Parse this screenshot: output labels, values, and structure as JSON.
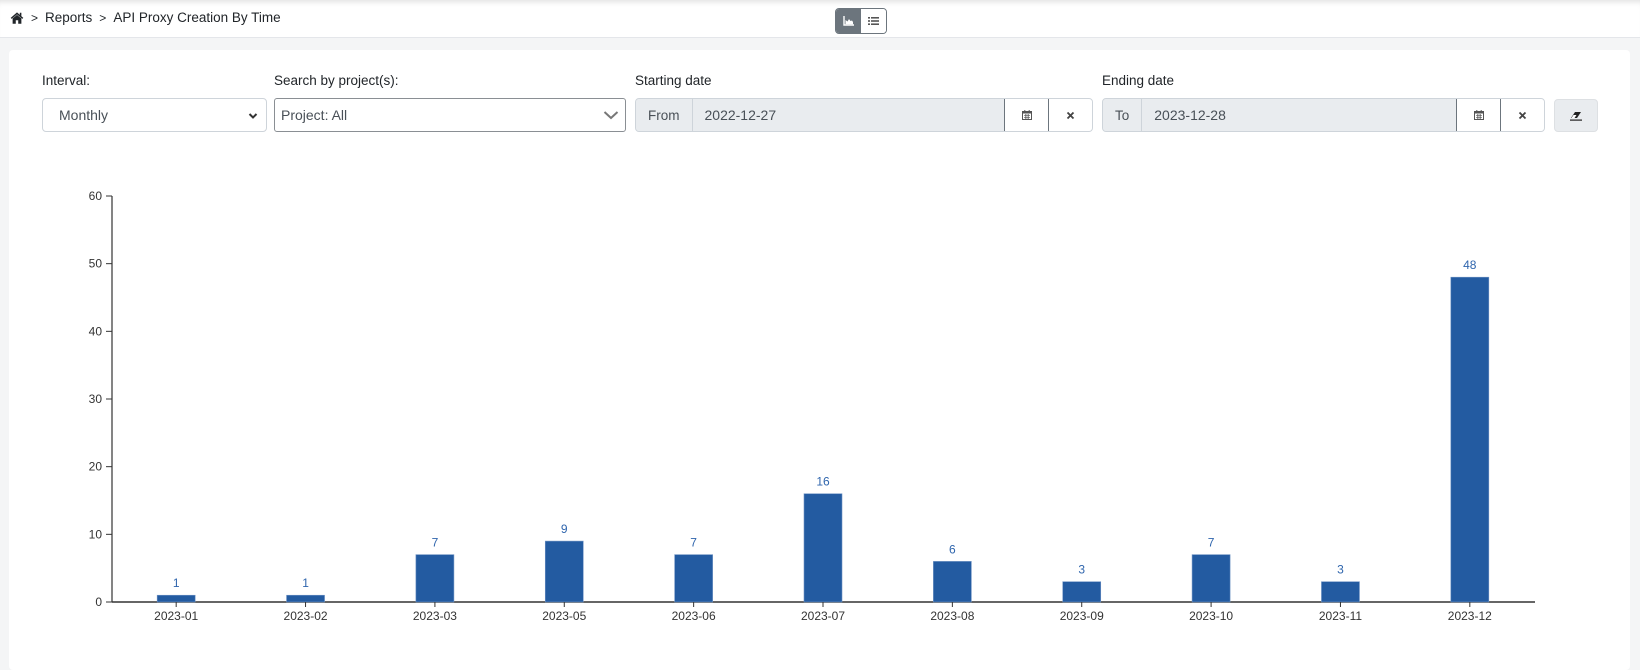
{
  "breadcrumb": {
    "home_icon": "home-icon",
    "separator": ">",
    "items": [
      "Reports",
      "API Proxy Creation By Time"
    ]
  },
  "view_toggle": {
    "options": [
      {
        "name": "chart-view",
        "icon": "area-chart-icon",
        "active": true
      },
      {
        "name": "list-view",
        "icon": "list-icon",
        "active": false
      }
    ]
  },
  "filters": {
    "interval": {
      "label": "Interval:",
      "value": "Monthly"
    },
    "project": {
      "label": "Search by project(s):",
      "value": "Project: All"
    },
    "start_date": {
      "label": "Starting date",
      "prefix": "From",
      "value": "2022-12-27"
    },
    "end_date": {
      "label": "Ending date",
      "prefix": "To",
      "value": "2023-12-28"
    },
    "clear_all_icon": "eraser-icon"
  },
  "colors": {
    "bar": "#235ba1",
    "label": "#2f65ad",
    "axis": "#333333",
    "tick_text": "#333333"
  },
  "chart_data": {
    "type": "bar",
    "title": "",
    "xlabel": "",
    "ylabel": "",
    "categories": [
      "2023-01",
      "2023-02",
      "2023-03",
      "2023-05",
      "2023-06",
      "2023-07",
      "2023-08",
      "2023-09",
      "2023-10",
      "2023-11",
      "2023-12"
    ],
    "values": [
      1,
      1,
      7,
      9,
      7,
      16,
      6,
      3,
      7,
      3,
      48
    ],
    "ylim": [
      0,
      60
    ],
    "yticks": [
      0,
      10,
      20,
      30,
      40,
      50,
      60
    ],
    "grid": false,
    "legend": null,
    "data_labels": true
  }
}
